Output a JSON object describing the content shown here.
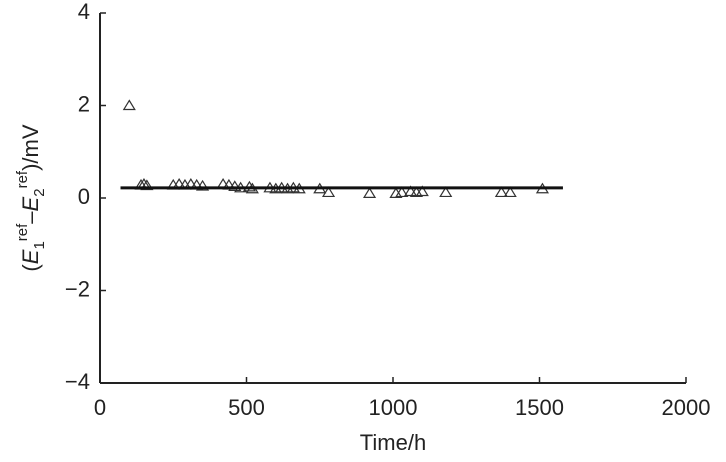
{
  "chart_data": {
    "type": "scatter",
    "x_label": "Time/h",
    "y_label_parts": [
      "(",
      "E",
      "1",
      "ref",
      "–",
      "E",
      "2",
      "ref",
      ")/mV"
    ],
    "xlim": [
      0,
      2000
    ],
    "xticks": [
      0,
      500,
      1000,
      1500,
      2000
    ],
    "ylim": [
      -4,
      4
    ],
    "yticks": [
      4,
      2,
      0,
      {
        "value": -2,
        "label": "−2"
      },
      {
        "value": -4,
        "label": "−4"
      }
    ],
    "series": [
      {
        "type": "scatter",
        "color": "#333333",
        "x": [
          100,
          140,
          150,
          160,
          250,
          270,
          290,
          310,
          330,
          350,
          420,
          440,
          460,
          480,
          510,
          520,
          580,
          600,
          620,
          640,
          660,
          680,
          750,
          780,
          920,
          1010,
          1030,
          1060,
          1080,
          1100,
          1180,
          1370,
          1400,
          1510
        ],
        "values": [
          2.0,
          0.28,
          0.3,
          0.27,
          0.28,
          0.3,
          0.28,
          0.3,
          0.28,
          0.26,
          0.3,
          0.28,
          0.25,
          0.22,
          0.24,
          0.2,
          0.22,
          0.2,
          0.22,
          0.2,
          0.22,
          0.2,
          0.2,
          0.12,
          0.1,
          0.1,
          0.12,
          0.14,
          0.12,
          0.14,
          0.12,
          0.12,
          0.12,
          0.2
        ]
      },
      {
        "type": "line",
        "color": "#111111",
        "x": [
          70,
          1580
        ],
        "values": [
          0.22,
          0.22
        ]
      }
    ]
  }
}
